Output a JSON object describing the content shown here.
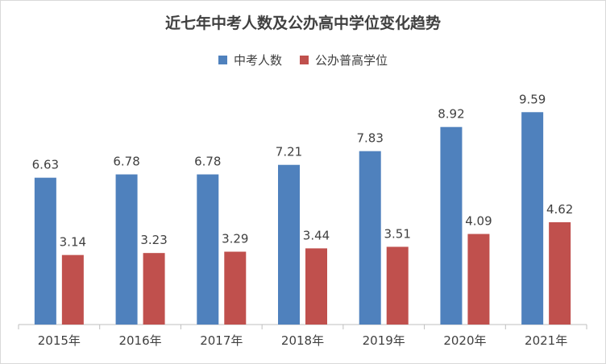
{
  "chart_data": {
    "type": "bar",
    "title": "近七年中考人数及公办高中学位变化趋势",
    "categories": [
      "2015年",
      "2016年",
      "2017年",
      "2018年",
      "2019年",
      "2020年",
      "2021年"
    ],
    "series": [
      {
        "name": "中考人数",
        "color": "#4f81bd",
        "values": [
          6.63,
          6.78,
          6.78,
          7.21,
          7.83,
          8.92,
          9.59
        ]
      },
      {
        "name": "公办普高学位",
        "color": "#c0504d",
        "values": [
          3.14,
          3.23,
          3.29,
          3.44,
          3.51,
          4.09,
          4.62
        ]
      }
    ],
    "xlabel": "",
    "ylabel": "",
    "ylim": [
      0,
      10
    ],
    "grid": false,
    "legend": "top-center",
    "data_labels": true
  }
}
